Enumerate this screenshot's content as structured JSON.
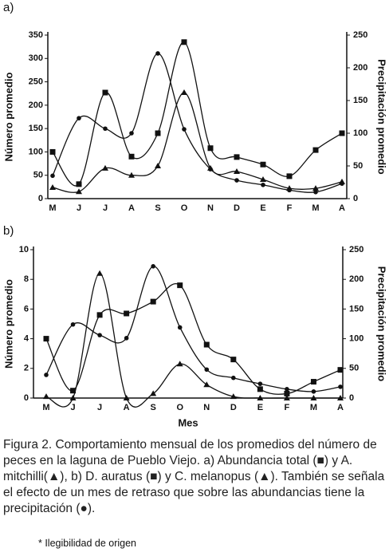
{
  "chart_data": [
    {
      "type": "line",
      "panel_label": "a)",
      "y_label": "Número promedio",
      "y2_label": "Precipitación promedio",
      "categories": [
        "M",
        "J",
        "J",
        "A",
        "S",
        "O",
        "N",
        "D",
        "E",
        "F",
        "M",
        "A"
      ],
      "ylim": [
        0,
        350
      ],
      "yticks": [
        0,
        50,
        100,
        150,
        200,
        250,
        300,
        350
      ],
      "y2lim": [
        0,
        250
      ],
      "y2ticks": [
        0,
        50,
        100,
        150,
        200,
        250
      ],
      "series": [
        {
          "marker": "square",
          "color": "#111111",
          "values": [
            100,
            31,
            227,
            90,
            140,
            335,
            108,
            89,
            73,
            48,
            104,
            140
          ]
        },
        {
          "marker": "triangle",
          "color": "#111111",
          "values": [
            24,
            15,
            65,
            50,
            70,
            227,
            65,
            58,
            41,
            22,
            22,
            36
          ]
        },
        {
          "marker": "circle",
          "color": "#111111",
          "axis": "y2",
          "values": [
            35,
            123,
            107,
            100,
            222,
            106,
            45,
            28,
            21,
            13,
            10,
            23
          ]
        }
      ]
    },
    {
      "type": "line",
      "panel_label": "b)",
      "y_label": "Número promedio",
      "y2_label": "Precipitación promedio",
      "x_label": "Mes",
      "categories": [
        "M",
        "J",
        "J",
        "A",
        "S",
        "O",
        "N",
        "D",
        "E",
        "F",
        "M",
        "A"
      ],
      "ylim": [
        0,
        10
      ],
      "yticks": [
        0,
        2,
        4,
        6,
        8,
        10
      ],
      "y2lim": [
        0,
        250
      ],
      "y2ticks": [
        0,
        50,
        100,
        150,
        200,
        250
      ],
      "series": [
        {
          "marker": "square",
          "color": "#111111",
          "values": [
            4.0,
            0.5,
            5.6,
            5.7,
            6.5,
            7.6,
            3.6,
            2.6,
            0.6,
            0.3,
            1.1,
            1.9
          ]
        },
        {
          "marker": "triangle",
          "color": "#111111",
          "values": [
            0.1,
            0,
            8.4,
            0,
            0.3,
            2.3,
            0.9,
            0.1,
            0,
            0,
            0,
            0
          ]
        },
        {
          "marker": "circle",
          "color": "#111111",
          "axis": "y2",
          "values": [
            39,
            124,
            106,
            101,
            222,
            119,
            48,
            34,
            24,
            15,
            11,
            19
          ]
        }
      ]
    }
  ],
  "caption": "Figura 2. Comportamiento mensual de los promedios del número de peces en la laguna de Pueblo Viejo. a) Abundancia total (■) y A. mitchilli(▲), b) D. auratus (■) y C. melanopus (▲). También se señala el efecto de un mes de retraso que sobre las abundancias tiene la precipitación (●).",
  "note": "* Ilegibilidad de origen"
}
